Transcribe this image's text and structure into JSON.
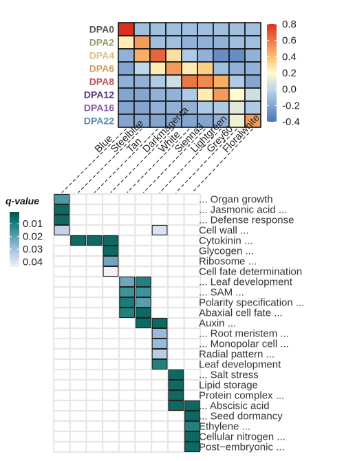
{
  "chart_data": [
    {
      "type": "heatmap",
      "rows": [
        "DPA0",
        "DPA2",
        "DPA4",
        "DPA6",
        "DPA8",
        "DPA12",
        "DPA16",
        "DPA22"
      ],
      "row_colors": [
        "#555555",
        "#9a9a62",
        "#dcc08a",
        "#d39a5a",
        "#c0505a",
        "#5a3a7a",
        "#8a5aa0",
        "#5a8ab0"
      ],
      "columns": [
        "Blue",
        "Steelblue",
        "Tan",
        "Darkmagenta",
        "White",
        "Sienna3",
        "Lightgreen",
        "Grey60",
        "Floralwhite"
      ],
      "values": [
        [
          0.8,
          -0.1,
          -0.1,
          -0.1,
          -0.1,
          -0.1,
          -0.1,
          -0.1,
          -0.1
        ],
        [
          0.25,
          0.5,
          -0.1,
          -0.1,
          -0.15,
          -0.15,
          -0.15,
          -0.1,
          -0.1
        ],
        [
          -0.15,
          0.45,
          0.65,
          0.3,
          -0.05,
          -0.15,
          -0.3,
          -0.3,
          -0.15
        ],
        [
          -0.2,
          0.0,
          0.25,
          0.5,
          0.25,
          0.35,
          -0.1,
          -0.15,
          -0.15
        ],
        [
          -0.15,
          -0.15,
          -0.05,
          0.05,
          0.6,
          0.55,
          0.45,
          -0.05,
          -0.2
        ],
        [
          -0.2,
          -0.2,
          -0.15,
          -0.15,
          -0.05,
          0.25,
          0.5,
          0.2,
          0.05
        ],
        [
          -0.2,
          -0.2,
          -0.15,
          -0.15,
          -0.15,
          -0.05,
          -0.05,
          0.1,
          -0.05
        ],
        [
          -0.2,
          -0.2,
          -0.2,
          -0.2,
          -0.2,
          -0.2,
          -0.15,
          0.15,
          0.5
        ]
      ],
      "colorbar": {
        "min": -0.4,
        "max": 0.8,
        "ticks": [
          "0.8",
          "0.6",
          "0.4",
          "0.2",
          "0.0",
          "-0.2",
          "-0.4"
        ]
      }
    },
    {
      "type": "heatmap",
      "legend_title": "q-value",
      "legend_ticks": [
        "0.01",
        "0.02",
        "0.03",
        "0.04"
      ],
      "columns": [
        "Blue",
        "Steelblue",
        "Tan",
        "Darkmagenta",
        "White",
        "Sienna3",
        "Lightgreen",
        "Grey60",
        "Floralwhite"
      ],
      "terms": [
        "... Organ growth",
        "... Jasmonic acid ...",
        "... Defense response",
        "Cell wall ...",
        "Cytokinin ...",
        "Glycogen ...",
        "Ribosome ...",
        "Cell fate determination",
        "... Leaf development",
        "... SAM ...",
        "Polarity specification ...",
        "Abaxial cell fate ...",
        "Auxin ...",
        "... Root meristem ...",
        "... Monopolar cell ...",
        "Radial pattern ...",
        "Leaf development",
        "... Salt stress",
        "Lipid storage",
        "Protein complex ...",
        "... Abscisic acid",
        "... Seed dormancy",
        "Ethylene ...",
        "Cellular nitrogen ...",
        "Post−embryonic ..."
      ],
      "cells": [
        {
          "term": 0,
          "col": 0,
          "q": 0.02
        },
        {
          "term": 1,
          "col": 0,
          "q": 0.005
        },
        {
          "term": 2,
          "col": 0,
          "q": 0.005
        },
        {
          "term": 3,
          "col": 0,
          "q": 0.04
        },
        {
          "term": 3,
          "col": 6,
          "q": 0.045
        },
        {
          "term": 4,
          "col": 1,
          "q": 0.005
        },
        {
          "term": 4,
          "col": 2,
          "q": 0.005
        },
        {
          "term": 4,
          "col": 3,
          "q": 0.005
        },
        {
          "term": 5,
          "col": 3,
          "q": 0.005
        },
        {
          "term": 6,
          "col": 3,
          "q": 0.025
        },
        {
          "term": 7,
          "col": 3,
          "q": 0.05
        },
        {
          "term": 8,
          "col": 4,
          "q": 0.025
        },
        {
          "term": 8,
          "col": 5,
          "q": 0.012
        },
        {
          "term": 9,
          "col": 4,
          "q": 0.018
        },
        {
          "term": 9,
          "col": 5,
          "q": 0.018
        },
        {
          "term": 10,
          "col": 4,
          "q": 0.01
        },
        {
          "term": 10,
          "col": 5,
          "q": 0.022
        },
        {
          "term": 11,
          "col": 4,
          "q": 0.012
        },
        {
          "term": 11,
          "col": 5,
          "q": 0.005
        },
        {
          "term": 12,
          "col": 5,
          "q": 0.005
        },
        {
          "term": 12,
          "col": 6,
          "q": 0.005
        },
        {
          "term": 13,
          "col": 6,
          "q": 0.032
        },
        {
          "term": 14,
          "col": 6,
          "q": 0.032
        },
        {
          "term": 15,
          "col": 6,
          "q": 0.038
        },
        {
          "term": 16,
          "col": 6,
          "q": 0.012
        },
        {
          "term": 17,
          "col": 7,
          "q": 0.005
        },
        {
          "term": 18,
          "col": 7,
          "q": 0.005
        },
        {
          "term": 19,
          "col": 7,
          "q": 0.005
        },
        {
          "term": 20,
          "col": 7,
          "q": 0.005
        },
        {
          "term": 20,
          "col": 8,
          "q": 0.005
        },
        {
          "term": 21,
          "col": 8,
          "q": 0.005
        },
        {
          "term": 22,
          "col": 8,
          "q": 0.012
        },
        {
          "term": 23,
          "col": 8,
          "q": 0.005
        },
        {
          "term": 24,
          "col": 8,
          "q": 0.005
        }
      ]
    }
  ]
}
